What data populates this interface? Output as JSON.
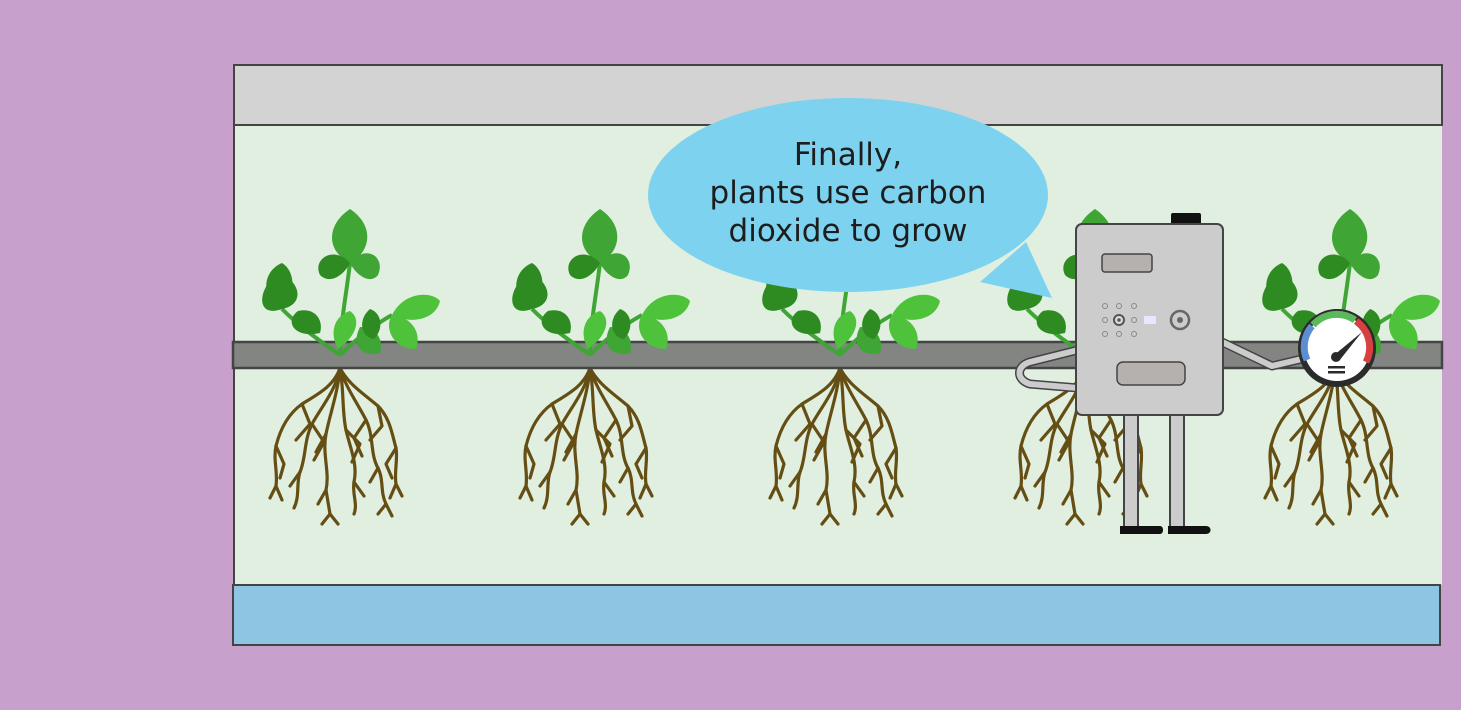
{
  "colors": {
    "background": "#c7a0cb",
    "ceiling": "#d3d3d3",
    "chamber": "#e0efdf",
    "pipe": "#828582",
    "water": "#8ec5e3",
    "bubble": "#7dd3ef",
    "leaf_dark": "#2e8b22",
    "leaf_mid": "#3fa535",
    "leaf_light": "#4ec23a",
    "root": "#654e14",
    "robot_body": "#cccccc",
    "outline": "#444444"
  },
  "speech": {
    "lines": [
      "Finally,",
      "plants use carbon",
      "dioxide to grow"
    ]
  },
  "icons": [
    "plant-icon",
    "robot-icon",
    "gauge-icon"
  ]
}
